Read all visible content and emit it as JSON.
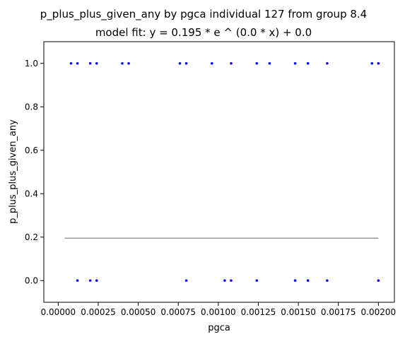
{
  "chart_data": {
    "type": "scatter",
    "title": "p_plus_plus_given_any by pgca individual 127 from group 8.4",
    "subtitle": "model fit: y = 0.195 * e ^ (0.0 * x) + 0.0",
    "xlabel": "pgca",
    "ylabel": "p_plus_plus_given_any",
    "xlim": [
      -9e-05,
      0.0021
    ],
    "ylim": [
      -0.1,
      1.1
    ],
    "xticks": [
      0.0,
      0.00025,
      0.0005,
      0.00075,
      0.001,
      0.00125,
      0.0015,
      0.00175,
      0.002
    ],
    "xtick_labels": [
      "0.00000",
      "0.00025",
      "0.00050",
      "0.00075",
      "0.00100",
      "0.00125",
      "0.00150",
      "0.00175",
      "0.00200"
    ],
    "yticks": [
      0.0,
      0.2,
      0.4,
      0.6,
      0.8,
      1.0
    ],
    "ytick_labels": [
      "0.0",
      "0.2",
      "0.4",
      "0.6",
      "0.8",
      "1.0"
    ],
    "grid": false,
    "point_color": "#0000ff",
    "fit_color": "#999999",
    "series": [
      {
        "x": [
          8e-05,
          0.00012,
          0.0002,
          0.00024,
          0.0004,
          0.00044,
          0.00076,
          0.0008,
          0.00096,
          0.00108,
          0.00124,
          0.00132,
          0.00148,
          0.00156,
          0.00168,
          0.00196,
          0.002,
          0.00012,
          0.0002,
          0.00024,
          0.0008,
          0.00104,
          0.00108,
          0.00124,
          0.00148,
          0.00156,
          0.00168,
          0.002
        ],
        "y": [
          1,
          1,
          1,
          1,
          1,
          1,
          1,
          1,
          1,
          1,
          1,
          1,
          1,
          1,
          1,
          1,
          1,
          0,
          0,
          0,
          0,
          0,
          0,
          0,
          0,
          0,
          0,
          0
        ]
      }
    ],
    "fit": {
      "a": 0.195,
      "b": 0.0,
      "c": 0.0,
      "x_range": [
        4e-05,
        0.002
      ]
    }
  }
}
